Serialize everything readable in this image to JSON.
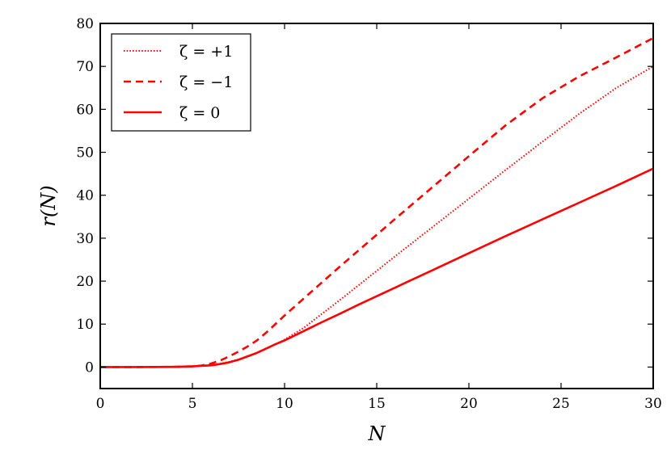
{
  "chart_data": {
    "type": "line",
    "title": "",
    "xlabel": "N",
    "ylabel": "r(N)",
    "xlim": [
      0,
      30
    ],
    "ylim": [
      -5,
      80
    ],
    "xticks": [
      0,
      5,
      10,
      15,
      20,
      25,
      30
    ],
    "yticks": [
      0,
      10,
      20,
      30,
      40,
      50,
      60,
      70,
      80
    ],
    "grid": false,
    "legend_position": "top-left",
    "series": [
      {
        "name": "ζ = +1",
        "style": "dotted",
        "color": "#ff0000",
        "x": [
          0,
          2,
          4,
          5,
          6,
          6.5,
          7,
          7.5,
          8,
          8.5,
          9,
          9.5,
          10,
          11,
          12,
          13,
          14,
          15,
          16,
          18,
          20,
          22,
          24,
          26,
          28,
          30
        ],
        "y": [
          0,
          0,
          0.05,
          0.2,
          0.5,
          0.8,
          1.2,
          1.8,
          2.5,
          3.3,
          4.3,
          5.3,
          6.4,
          9.0,
          12.3,
          15.6,
          19.0,
          22.4,
          25.8,
          32.5,
          39.2,
          45.9,
          52.5,
          59.0,
          65.0,
          70.0
        ]
      },
      {
        "name": "ζ = −1",
        "style": "dashed",
        "color": "#ff0000",
        "x": [
          0,
          2,
          4,
          5,
          5.5,
          6,
          6.5,
          7,
          7.5,
          8,
          8.5,
          9,
          9.5,
          10,
          11,
          12,
          13,
          14,
          15,
          16,
          18,
          20,
          22,
          24,
          26,
          28,
          30
        ],
        "y": [
          0,
          0,
          0.05,
          0.15,
          0.35,
          0.8,
          1.5,
          2.5,
          3.6,
          4.8,
          6.2,
          8.0,
          10.0,
          12.0,
          15.8,
          19.6,
          23.4,
          27.1,
          30.8,
          34.5,
          41.8,
          49.1,
          56.3,
          62.6,
          67.7,
          72.1,
          76.6
        ]
      },
      {
        "name": "ζ = 0",
        "style": "solid",
        "color": "#ff0000",
        "x": [
          0,
          2,
          4,
          5,
          6,
          6.5,
          7,
          7.5,
          8,
          8.5,
          9,
          9.5,
          10,
          11,
          12,
          13,
          14,
          15,
          16,
          18,
          20,
          22,
          24,
          26,
          28,
          30
        ],
        "y": [
          0,
          0,
          0.05,
          0.15,
          0.4,
          0.7,
          1.1,
          1.7,
          2.5,
          3.3,
          4.3,
          5.3,
          6.2,
          8.3,
          10.4,
          12.4,
          14.5,
          16.5,
          18.5,
          22.5,
          26.5,
          30.5,
          34.4,
          38.3,
          42.2,
          46.2
        ]
      }
    ]
  }
}
